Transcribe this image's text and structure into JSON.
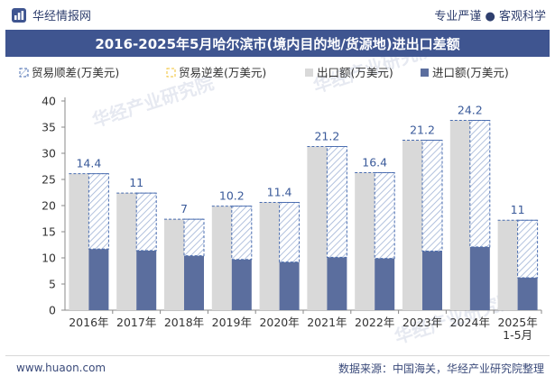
{
  "header": {
    "brand": "华经情报网",
    "tags": "专业严谨 ● 客观科学"
  },
  "title": "2016-2025年5月哈尔滨市(境内目的地/货源地)进出口差额",
  "footer": {
    "website": "www.huaon.com",
    "source": "数据来源：中国海关，华经产业研究院整理"
  },
  "watermark": {
    "text": "华经产业研究院",
    "url": "www.huaon.com"
  },
  "colors": {
    "title_bg": "#3f5590",
    "export": "#d9d9d9",
    "import": "#5b6e9e",
    "surplus_border": "#4a6db0",
    "deficit_border": "#f0c030"
  },
  "chart_data": {
    "type": "bar",
    "categories": [
      "2016年",
      "2017年",
      "2018年",
      "2019年",
      "2020年",
      "2021年",
      "2022年",
      "2023年",
      "2024年",
      "2025年\n1-5月"
    ],
    "series": [
      {
        "name": "贸易顺差(万美元)",
        "values": [
          14.4,
          11,
          7,
          10.2,
          11.4,
          21.2,
          16.4,
          21.2,
          24.2,
          11
        ]
      },
      {
        "name": "贸易逆差(万美元)",
        "values": [
          0,
          0,
          0,
          0,
          0,
          0,
          0,
          0,
          0,
          0
        ]
      },
      {
        "name": "出口额(万美元)",
        "values": [
          26.1,
          22.4,
          17.4,
          19.9,
          20.6,
          31.3,
          26.3,
          32.5,
          36.3,
          17.2
        ]
      },
      {
        "name": "进口额(万美元)",
        "values": [
          11.7,
          11.4,
          10.4,
          9.7,
          9.2,
          10.1,
          9.9,
          11.3,
          12.1,
          6.2
        ]
      }
    ],
    "ylim": [
      0,
      40
    ],
    "yticks": [
      0,
      5,
      10,
      15,
      20,
      25,
      30,
      35,
      40
    ],
    "legend_position": "top-left",
    "grid": false
  }
}
